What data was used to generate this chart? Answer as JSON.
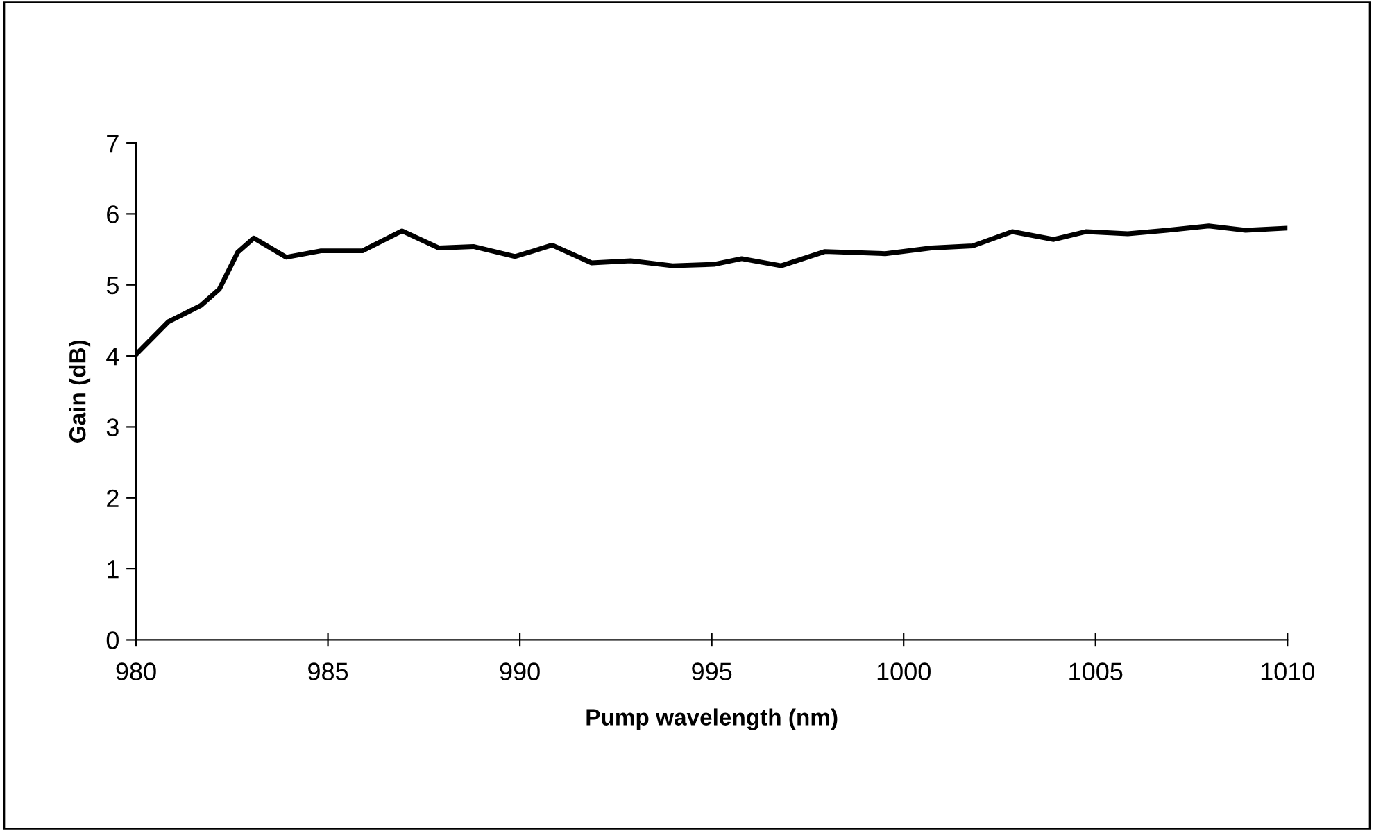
{
  "chart_data": {
    "type": "line",
    "xlabel": "Pump wavelength (nm)",
    "ylabel": "Gain (dB)",
    "xlim": [
      980,
      1010
    ],
    "xticks": [
      980,
      985,
      990,
      995,
      1000,
      1005,
      1010
    ],
    "ylim": [
      0,
      7
    ],
    "yticks": [
      0,
      1,
      2,
      3,
      4,
      5,
      6,
      7
    ],
    "grid": false,
    "legend": false,
    "series": [
      {
        "color": "#000000",
        "x": [
          980,
          980.84,
          981.69,
          982.17,
          982.65,
          983.07,
          983.91,
          984.82,
          985.9,
          986.93,
          987.89,
          988.79,
          989.88,
          990.84,
          991.87,
          992.89,
          993.98,
          995.06,
          995.78,
          996.81,
          997.95,
          999.52,
          1000.72,
          1001.8,
          1002.83,
          1003.91,
          1004.76,
          1005.84,
          1006.86,
          1007.95,
          1008.91,
          1010
        ],
        "values": [
          4.02,
          4.48,
          4.71,
          4.94,
          5.46,
          5.66,
          5.39,
          5.48,
          5.48,
          5.76,
          5.52,
          5.54,
          5.4,
          5.56,
          5.31,
          5.34,
          5.27,
          5.29,
          5.37,
          5.27,
          5.47,
          5.44,
          5.52,
          5.55,
          5.75,
          5.64,
          5.75,
          5.72,
          5.77,
          5.83,
          5.77,
          5.8
        ]
      }
    ]
  }
}
